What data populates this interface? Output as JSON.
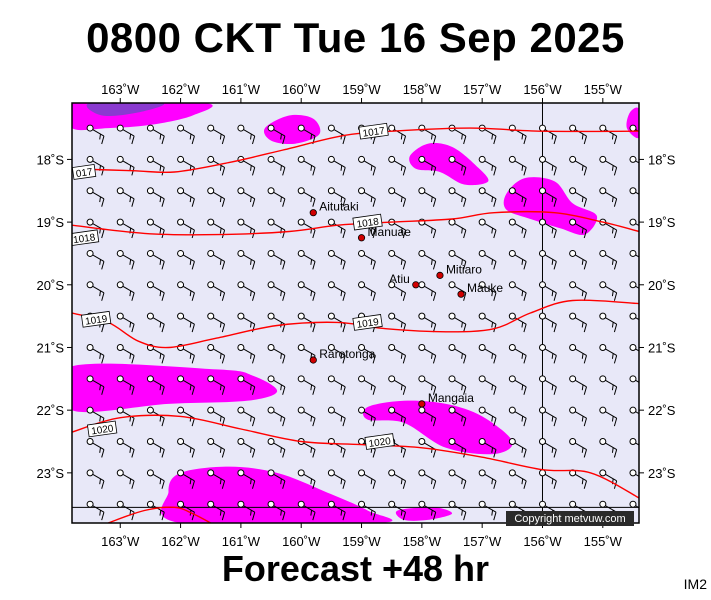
{
  "title": "0800 CKT Tue 16 Sep 2025",
  "subtitle": "Forecast +48 hr",
  "model_id": "IM2",
  "copyright": "Copyright metvuw.com",
  "colors": {
    "sea": "#e8e8f8",
    "rain_light": "#ff00ff",
    "rain_heavy": "#8a3ad0",
    "isobar": "#ff0000",
    "border": "#000000"
  },
  "map": {
    "lon_min": -163.8,
    "lon_max": -154.4,
    "lat_min": -23.8,
    "lat_max": -17.1,
    "lon_ticks": [
      {
        "lon": -163,
        "label": "163˚W"
      },
      {
        "lon": -162,
        "label": "162˚W"
      },
      {
        "lon": -161,
        "label": "161˚W"
      },
      {
        "lon": -160,
        "label": "160˚W"
      },
      {
        "lon": -159,
        "label": "159˚W"
      },
      {
        "lon": -158,
        "label": "158˚W"
      },
      {
        "lon": -157,
        "label": "157˚W"
      },
      {
        "lon": -156,
        "label": "156˚W"
      },
      {
        "lon": -155,
        "label": "155˚W"
      }
    ],
    "lat_ticks": [
      {
        "lat": -18,
        "label": "18˚S"
      },
      {
        "lat": -19,
        "label": "19˚S"
      },
      {
        "lat": -20,
        "label": "20˚S"
      },
      {
        "lat": -21,
        "label": "21˚S"
      },
      {
        "lat": -22,
        "label": "22˚S"
      },
      {
        "lat": -23,
        "label": "23˚S"
      }
    ],
    "grid_lines": {
      "lon": -156,
      "lat": -23.55
    }
  },
  "places": [
    {
      "name": "Aitutaki",
      "lon": -159.8,
      "lat": -18.85
    },
    {
      "name": "Manuae",
      "lon": -159.0,
      "lat": -19.25
    },
    {
      "name": "Mitiaro",
      "lon": -157.7,
      "lat": -19.85
    },
    {
      "name": "Atiu",
      "lon": -158.1,
      "lat": -20.0
    },
    {
      "name": "Mauke",
      "lon": -157.35,
      "lat": -20.15
    },
    {
      "name": "Rarotonga",
      "lon": -159.8,
      "lat": -21.2
    },
    {
      "name": "Mangaia",
      "lon": -158.0,
      "lat": -21.9
    }
  ],
  "isobars": [
    {
      "label": "1017",
      "label_at": [
        -158.8,
        -17.55
      ],
      "edge_label": "017",
      "edge_at": [
        -163.6,
        -18.2
      ],
      "points": [
        [
          -163.8,
          -18.15
        ],
        [
          -162.8,
          -18.18
        ],
        [
          -162.1,
          -18.2
        ],
        [
          -161.2,
          -18.05
        ],
        [
          -160.3,
          -17.85
        ],
        [
          -159.3,
          -17.62
        ],
        [
          -158.5,
          -17.55
        ],
        [
          -157.2,
          -17.5
        ],
        [
          -156.0,
          -17.55
        ],
        [
          -154.4,
          -17.55
        ]
      ]
    },
    {
      "label": "1018",
      "label_at": [
        -158.9,
        -19.0
      ],
      "edge_label": "1018",
      "edge_at": [
        -163.6,
        -19.25
      ],
      "points": [
        [
          -163.8,
          -19.05
        ],
        [
          -162.6,
          -19.18
        ],
        [
          -161.4,
          -19.2
        ],
        [
          -160.2,
          -19.15
        ],
        [
          -159.4,
          -19.05
        ],
        [
          -158.5,
          -19.0
        ],
        [
          -157.5,
          -18.95
        ],
        [
          -156.8,
          -18.85
        ],
        [
          -155.8,
          -18.85
        ],
        [
          -155.0,
          -19.0
        ],
        [
          -154.4,
          -19.15
        ]
      ]
    },
    {
      "label": "1019",
      "label_at": [
        -158.9,
        -20.6
      ],
      "edge_label": "1019",
      "edge_at": [
        -163.4,
        -20.55
      ],
      "points": [
        [
          -163.8,
          -20.45
        ],
        [
          -163.2,
          -20.6
        ],
        [
          -162.7,
          -20.9
        ],
        [
          -162.2,
          -21.0
        ],
        [
          -161.4,
          -20.85
        ],
        [
          -160.4,
          -20.65
        ],
        [
          -159.4,
          -20.6
        ],
        [
          -158.6,
          -20.7
        ],
        [
          -157.6,
          -20.75
        ],
        [
          -156.8,
          -20.7
        ],
        [
          -156.2,
          -20.45
        ],
        [
          -155.5,
          -20.25
        ],
        [
          -154.4,
          -20.3
        ]
      ]
    },
    {
      "label": "1020",
      "label_at": [
        -158.7,
        -22.5
      ],
      "edge_label": "1020",
      "edge_at": [
        -163.3,
        -22.3
      ],
      "points": [
        [
          -163.8,
          -22.35
        ],
        [
          -163.0,
          -22.12
        ],
        [
          -162.0,
          -22.1
        ],
        [
          -161.0,
          -22.3
        ],
        [
          -160.0,
          -22.5
        ],
        [
          -159.0,
          -22.55
        ],
        [
          -158.0,
          -22.6
        ],
        [
          -157.0,
          -22.75
        ],
        [
          -156.0,
          -22.95
        ],
        [
          -155.2,
          -23.0
        ],
        [
          -154.4,
          -23.4
        ]
      ]
    },
    {
      "label": "",
      "label_at": null,
      "edge_label": "",
      "edge_at": null,
      "points": [
        [
          -163.2,
          -23.8
        ],
        [
          -162.6,
          -23.6
        ],
        [
          -162.1,
          -23.55
        ],
        [
          -161.8,
          -23.65
        ],
        [
          -161.5,
          -23.8
        ]
      ]
    }
  ],
  "rain": [
    {
      "level": "light",
      "points": [
        [
          -163.8,
          -17.1
        ],
        [
          -161.6,
          -17.1
        ],
        [
          -161.8,
          -17.3
        ],
        [
          -162.5,
          -17.45
        ],
        [
          -163.2,
          -17.5
        ],
        [
          -163.8,
          -17.5
        ]
      ]
    },
    {
      "level": "heavy",
      "points": [
        [
          -163.5,
          -17.1
        ],
        [
          -162.3,
          -17.1
        ],
        [
          -162.7,
          -17.25
        ],
        [
          -163.3,
          -17.3
        ]
      ]
    },
    {
      "level": "light",
      "points": [
        [
          -160.6,
          -17.5
        ],
        [
          -160.2,
          -17.3
        ],
        [
          -159.8,
          -17.35
        ],
        [
          -159.7,
          -17.6
        ],
        [
          -160.1,
          -17.75
        ],
        [
          -160.5,
          -17.7
        ]
      ]
    },
    {
      "level": "light",
      "points": [
        [
          -154.55,
          -17.25
        ],
        [
          -154.4,
          -17.2
        ],
        [
          -154.4,
          -17.65
        ],
        [
          -154.6,
          -17.5
        ]
      ]
    },
    {
      "level": "light",
      "points": [
        [
          -158.2,
          -17.95
        ],
        [
          -157.9,
          -17.75
        ],
        [
          -157.5,
          -17.8
        ],
        [
          -157.1,
          -18.1
        ],
        [
          -156.9,
          -18.35
        ],
        [
          -157.3,
          -18.4
        ],
        [
          -157.7,
          -18.2
        ],
        [
          -158.1,
          -18.15
        ]
      ]
    },
    {
      "level": "light",
      "points": [
        [
          -156.6,
          -18.55
        ],
        [
          -156.3,
          -18.3
        ],
        [
          -155.8,
          -18.35
        ],
        [
          -155.5,
          -18.7
        ],
        [
          -155.1,
          -18.9
        ],
        [
          -155.3,
          -19.2
        ],
        [
          -155.7,
          -19.1
        ],
        [
          -156.2,
          -18.95
        ],
        [
          -156.6,
          -18.8
        ]
      ]
    },
    {
      "level": "light",
      "points": [
        [
          -163.8,
          -21.3
        ],
        [
          -161.4,
          -21.35
        ],
        [
          -160.8,
          -21.45
        ],
        [
          -160.4,
          -21.7
        ],
        [
          -160.9,
          -21.85
        ],
        [
          -162.2,
          -21.9
        ],
        [
          -163.8,
          -22.0
        ]
      ]
    },
    {
      "level": "light",
      "points": [
        [
          -158.9,
          -21.95
        ],
        [
          -158.3,
          -21.85
        ],
        [
          -157.6,
          -21.9
        ],
        [
          -157.0,
          -22.1
        ],
        [
          -156.5,
          -22.5
        ],
        [
          -156.8,
          -22.7
        ],
        [
          -157.6,
          -22.6
        ],
        [
          -158.3,
          -22.2
        ],
        [
          -158.9,
          -22.15
        ]
      ]
    },
    {
      "level": "light",
      "points": [
        [
          -162.0,
          -23.0
        ],
        [
          -161.2,
          -22.9
        ],
        [
          -160.4,
          -23.0
        ],
        [
          -159.6,
          -23.3
        ],
        [
          -158.9,
          -23.6
        ],
        [
          -158.7,
          -23.8
        ],
        [
          -162.0,
          -23.8
        ],
        [
          -162.2,
          -23.3
        ]
      ]
    },
    {
      "level": "light",
      "points": [
        [
          -158.4,
          -23.6
        ],
        [
          -157.8,
          -23.55
        ],
        [
          -157.5,
          -23.65
        ],
        [
          -157.9,
          -23.75
        ],
        [
          -158.3,
          -23.75
        ]
      ]
    }
  ],
  "wind": {
    "lon_start": -163.5,
    "lon_step": 0.5,
    "lon_count": 19,
    "lat_values": [
      -17.5,
      -18.0,
      -18.5,
      -19.0,
      -19.5,
      -20.0,
      -20.5,
      -21.0,
      -21.5,
      -22.0,
      -22.5,
      -23.0,
      -23.5
    ],
    "direction_deg_from": 120
  }
}
